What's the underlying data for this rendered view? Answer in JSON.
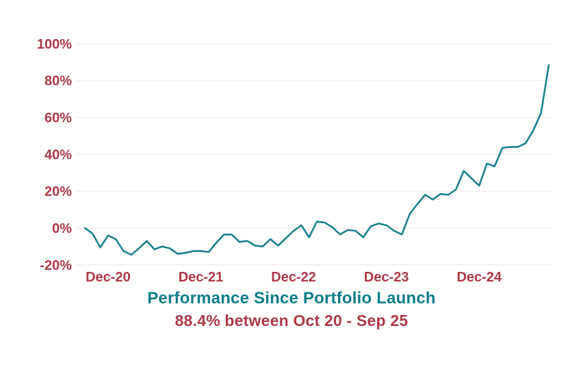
{
  "colors": {
    "teal_title": "#0e7d8a",
    "line": "#1b808e",
    "red_labels": "#ac3a46",
    "gridline": "#f7eae9",
    "background": "#ffffff"
  },
  "chart_data": {
    "type": "line",
    "title": "Performance Since Portfolio Launch",
    "subtitle": "88.4% between Oct 20 - Sep 25",
    "xlabel": "",
    "ylabel": "",
    "ylim": [
      -20,
      100
    ],
    "grid": "horizontal-only",
    "legend": "none",
    "y_tick_labels": [
      "100%",
      "80%",
      "60%",
      "40%",
      "20%",
      "0%",
      "-20%"
    ],
    "y_tick_values": [
      100,
      80,
      60,
      40,
      20,
      0,
      -20
    ],
    "x_tick_labels": [
      "Dec-20",
      "Dec-21",
      "Dec-22",
      "Dec-23",
      "Dec-24"
    ],
    "x_tick_month_indices": [
      3,
      15,
      27,
      39,
      51
    ],
    "series_name": "Portfolio performance %",
    "start_value_pct": 0,
    "end_value_pct": 88.4,
    "months": [
      "Sep-20",
      "Oct-20",
      "Nov-20",
      "Dec-20",
      "Jan-21",
      "Feb-21",
      "Mar-21",
      "Apr-21",
      "May-21",
      "Jun-21",
      "Jul-21",
      "Aug-21",
      "Sep-21",
      "Oct-21",
      "Nov-21",
      "Dec-21",
      "Jan-22",
      "Feb-22",
      "Mar-22",
      "Apr-22",
      "May-22",
      "Jun-22",
      "Jul-22",
      "Aug-22",
      "Sep-22",
      "Oct-22",
      "Nov-22",
      "Dec-22",
      "Jan-23",
      "Feb-23",
      "Mar-23",
      "Apr-23",
      "May-23",
      "Jun-23",
      "Jul-23",
      "Aug-23",
      "Sep-23",
      "Oct-23",
      "Nov-23",
      "Dec-23",
      "Jan-24",
      "Feb-24",
      "Mar-24",
      "Apr-24",
      "May-24",
      "Jun-24",
      "Jul-24",
      "Aug-24",
      "Sep-24",
      "Oct-24",
      "Nov-24",
      "Dec-24",
      "Jan-25",
      "Feb-25",
      "Mar-25",
      "Apr-25",
      "May-25",
      "Jun-25",
      "Jul-25",
      "Aug-25",
      "Sep-25"
    ],
    "values": [
      0,
      -3,
      -10.5,
      -4,
      -6,
      -12.5,
      -14.5,
      -11,
      -7,
      -11.5,
      -10,
      -11,
      -14,
      -13.5,
      -12.5,
      -12.5,
      -13,
      -8,
      -3.5,
      -3.5,
      -7.5,
      -7,
      -9.5,
      -10,
      -6,
      -9.5,
      -5.5,
      -1.5,
      1.5,
      -5,
      3.5,
      3,
      0.5,
      -3.5,
      -1,
      -1.5,
      -5,
      1,
      2.5,
      1.5,
      -1.5,
      -3.5,
      7.5,
      13,
      18,
      15.5,
      18.5,
      18,
      21,
      31,
      27,
      23,
      35,
      33.5,
      43.5,
      44,
      44,
      46,
      53,
      62.5,
      88.4
    ]
  }
}
